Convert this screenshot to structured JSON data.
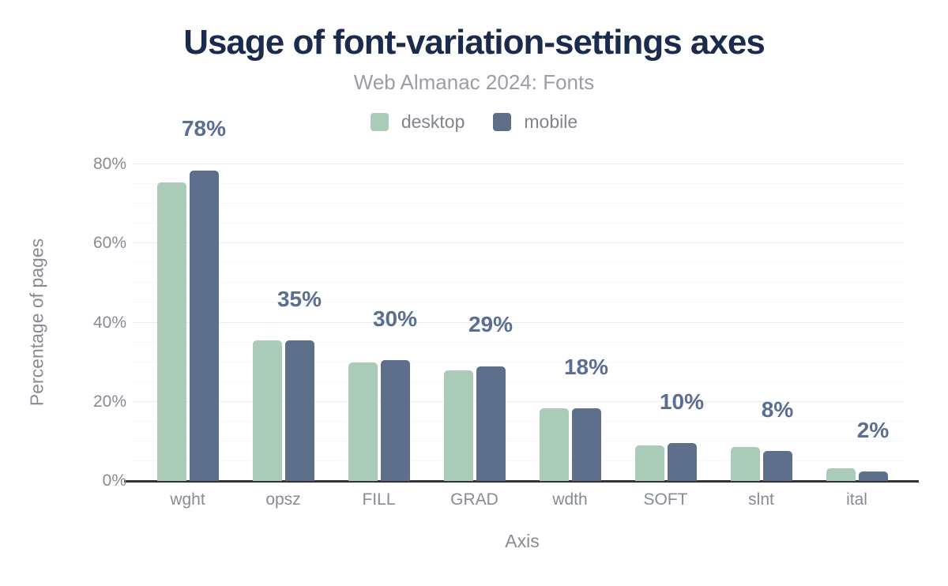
{
  "chart_data": {
    "type": "bar",
    "title": "Usage of font-variation-settings axes",
    "subtitle": "Web Almanac 2024: Fonts",
    "xlabel": "Axis",
    "ylabel": "Percentage of pages",
    "categories": [
      "wght",
      "opsz",
      "FILL",
      "GRAD",
      "wdth",
      "SOFT",
      "slnt",
      "ital"
    ],
    "series": [
      {
        "name": "desktop",
        "color": "#a9cbb8",
        "values": [
          75.5,
          35.5,
          30.0,
          28.0,
          18.3,
          9.0,
          8.5,
          3.2
        ]
      },
      {
        "name": "mobile",
        "color": "#5e6f8c",
        "values": [
          78.5,
          35.5,
          30.5,
          29.0,
          18.3,
          9.6,
          7.6,
          2.3
        ]
      }
    ],
    "data_labels": [
      "78%",
      "35%",
      "30%",
      "29%",
      "18%",
      "10%",
      "8%",
      "2%"
    ],
    "data_label_series": "mobile",
    "ylim": [
      0,
      80
    ],
    "yticks": [
      0,
      20,
      40,
      60,
      80
    ],
    "ytick_labels": [
      "0%",
      "20%",
      "40%",
      "60%",
      "80%"
    ],
    "minor_grid_step_percent": 5,
    "major_grid_step_percent": 20,
    "grid": true,
    "legend_position": "top-center",
    "colors": {
      "title": "#1b2b4d",
      "subtitle": "#9a9ea4",
      "axis_text": "#868b94",
      "data_label": "#5a6e93",
      "axis_line": "#313236",
      "major_grid": "#ececec",
      "minor_grid": "#f7f7f7"
    }
  }
}
